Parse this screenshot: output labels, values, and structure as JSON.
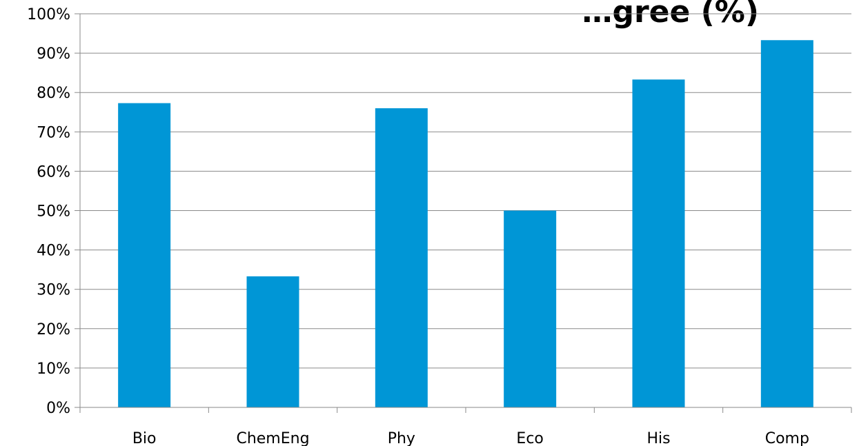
{
  "chart_data": {
    "type": "bar",
    "title": "…gree (%)",
    "xlabel": "",
    "ylabel": "",
    "categories": [
      "Bio",
      "ChemEng",
      "Phy",
      "Eco",
      "His",
      "Comp"
    ],
    "values": [
      77.3,
      33.3,
      76.0,
      50.0,
      83.3,
      93.3
    ],
    "ylim": [
      0,
      100
    ],
    "y_ticks": [
      0,
      10,
      20,
      30,
      40,
      50,
      60,
      70,
      80,
      90,
      100
    ],
    "y_tick_labels": [
      "0%",
      "10%",
      "20%",
      "30%",
      "40%",
      "50%",
      "60%",
      "70%",
      "80%",
      "90%",
      "100%"
    ],
    "grid": true,
    "bar_color": "#0096d6"
  }
}
